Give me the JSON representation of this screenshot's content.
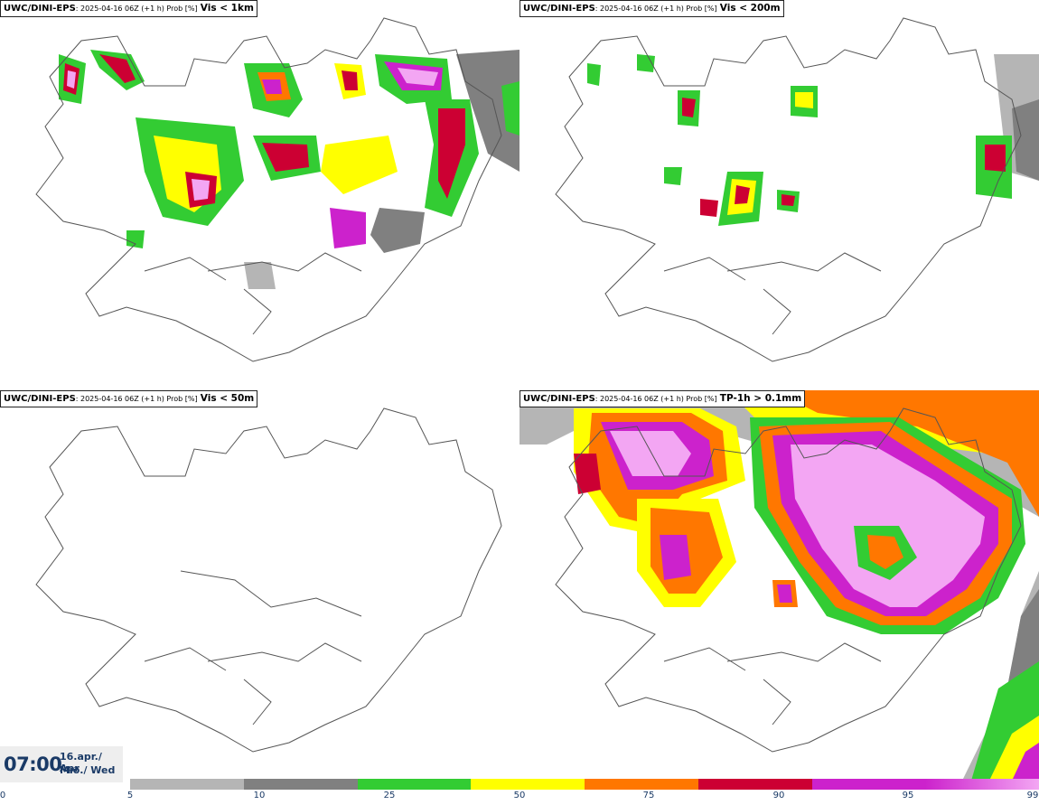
{
  "panels": [
    {
      "source": "UWC/DINI-EPS",
      "meta": ": 2025-04-16 06Z (+1 h) Prob [%]",
      "variable": "Vis < 1km"
    },
    {
      "source": "UWC/DINI-EPS",
      "meta": ": 2025-04-16 06Z (+1 h) Prob [%]",
      "variable": "Vis < 200m"
    },
    {
      "source": "UWC/DINI-EPS",
      "meta": ": 2025-04-16 06Z (+1 h) Prob [%]",
      "variable": "Vis < 50m"
    },
    {
      "source": "UWC/DINI-EPS",
      "meta": ": 2025-04-16 06Z (+1 h) Prob [%]",
      "variable": "TP-1h > 0.1mm"
    }
  ],
  "time": {
    "clock": "07:00",
    "date": "16.apr./ Apr",
    "weekday": "Mið./ Wed"
  },
  "legend": {
    "ticks": [
      "0",
      "5",
      "10",
      "25",
      "50",
      "75",
      "90",
      "95",
      "99"
    ],
    "colors": [
      "#ffffff",
      "#b5b5b5",
      "#808080",
      "#33cc33",
      "#ffff00",
      "#ff7700",
      "#cc0033",
      "#cc22cc",
      "#f3a6f3"
    ]
  }
}
